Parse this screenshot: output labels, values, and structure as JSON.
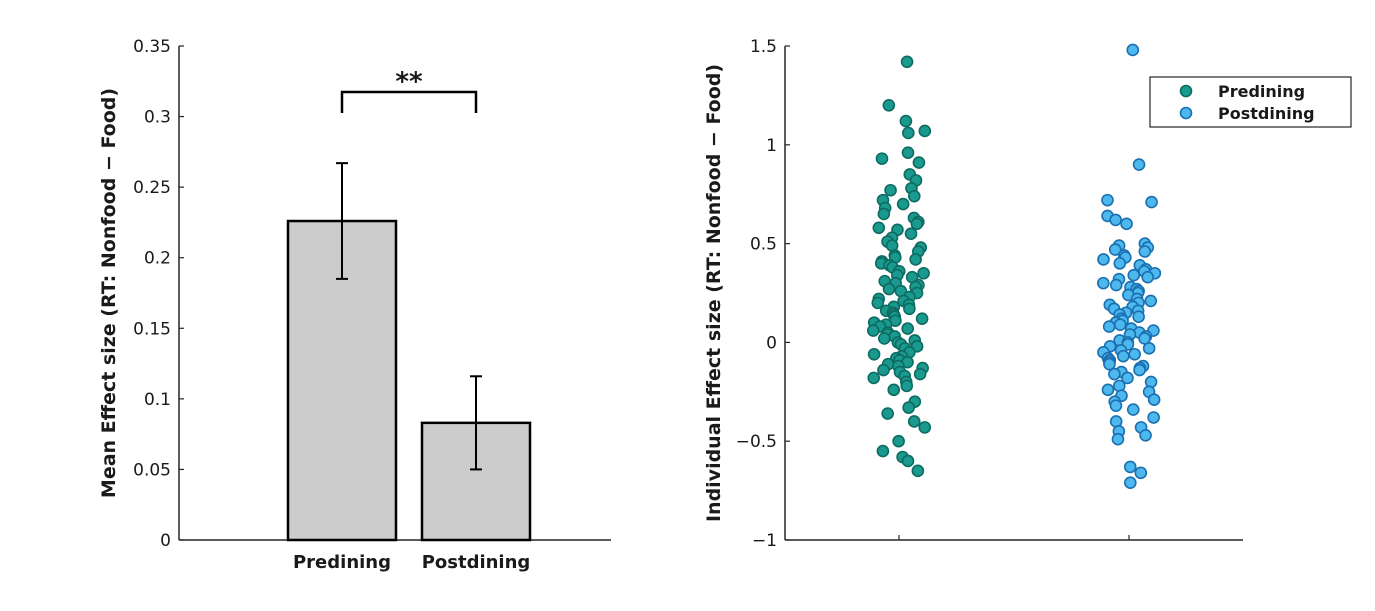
{
  "chart_data": [
    {
      "type": "bar",
      "title": "",
      "categories": [
        "Predining",
        "Postdining"
      ],
      "values": [
        0.226,
        0.083
      ],
      "errors": [
        0.041,
        0.033
      ],
      "bar_color": "#cccccc",
      "edge_color": "#000000",
      "xlabel": "",
      "ylabel": "Mean Effect size (RT: Nonfood − Food)",
      "ylim": [
        0,
        0.35
      ],
      "yticks": [
        0,
        0.05,
        0.1,
        0.15,
        0.2,
        0.25,
        0.3,
        0.35
      ],
      "ytick_labels": [
        "0",
        "0.05",
        "0.1",
        "0.15",
        "0.2",
        "0.25",
        "0.3",
        "0.35"
      ],
      "annotation": "**",
      "grid": false
    },
    {
      "type": "scatter",
      "title": "",
      "xlabel": "",
      "ylabel": "Individual Effect size (RT: Nonfood − Food)",
      "ylim": [
        -1,
        1.5
      ],
      "yticks": [
        -1,
        -0.5,
        0,
        0.5,
        1,
        1.5
      ],
      "ytick_labels": [
        "−1",
        "−0.5",
        "0",
        "0.5",
        "1",
        "1.5"
      ],
      "legend_position": "top-right",
      "grid": false,
      "series": [
        {
          "name": "Predining",
          "color": "#1a9a8e",
          "edge": "#0d6b62",
          "values": [
            1.42,
            1.2,
            1.12,
            1.07,
            1.06,
            0.96,
            0.93,
            0.91,
            0.85,
            0.82,
            0.78,
            0.77,
            0.74,
            0.72,
            0.7,
            0.68,
            0.65,
            0.63,
            0.61,
            0.6,
            0.58,
            0.57,
            0.55,
            0.53,
            0.51,
            0.49,
            0.48,
            0.46,
            0.44,
            0.43,
            0.42,
            0.41,
            0.4,
            0.39,
            0.38,
            0.36,
            0.35,
            0.34,
            0.33,
            0.31,
            0.3,
            0.29,
            0.28,
            0.27,
            0.26,
            0.25,
            0.23,
            0.22,
            0.21,
            0.2,
            0.19,
            0.18,
            0.17,
            0.16,
            0.15,
            0.14,
            0.13,
            0.12,
            0.11,
            0.1,
            0.09,
            0.08,
            0.07,
            0.06,
            0.05,
            0.04,
            0.03,
            0.02,
            0.01,
            0.0,
            -0.01,
            -0.02,
            -0.03,
            -0.05,
            -0.06,
            -0.07,
            -0.08,
            -0.09,
            -0.1,
            -0.11,
            -0.12,
            -0.13,
            -0.14,
            -0.15,
            -0.16,
            -0.17,
            -0.18,
            -0.2,
            -0.22,
            -0.24,
            -0.3,
            -0.33,
            -0.36,
            -0.4,
            -0.43,
            -0.5,
            -0.55,
            -0.58,
            -0.6,
            -0.65
          ]
        },
        {
          "name": "Postdining",
          "color": "#4db8ee",
          "edge": "#1a6fb0",
          "values": [
            1.48,
            0.9,
            0.72,
            0.71,
            0.64,
            0.62,
            0.6,
            0.5,
            0.49,
            0.48,
            0.47,
            0.46,
            0.44,
            0.43,
            0.42,
            0.4,
            0.39,
            0.37,
            0.36,
            0.35,
            0.34,
            0.33,
            0.32,
            0.3,
            0.29,
            0.28,
            0.27,
            0.26,
            0.25,
            0.24,
            0.22,
            0.21,
            0.2,
            0.19,
            0.18,
            0.17,
            0.16,
            0.15,
            0.14,
            0.13,
            0.12,
            0.11,
            0.1,
            0.09,
            0.08,
            0.07,
            0.06,
            0.05,
            0.04,
            0.03,
            0.02,
            0.01,
            0.0,
            -0.01,
            -0.02,
            -0.03,
            -0.04,
            -0.05,
            -0.06,
            -0.07,
            -0.08,
            -0.09,
            -0.1,
            -0.11,
            -0.12,
            -0.13,
            -0.14,
            -0.15,
            -0.16,
            -0.18,
            -0.2,
            -0.22,
            -0.24,
            -0.25,
            -0.27,
            -0.29,
            -0.3,
            -0.32,
            -0.34,
            -0.38,
            -0.4,
            -0.43,
            -0.45,
            -0.47,
            -0.49,
            -0.63,
            -0.66,
            -0.71
          ]
        }
      ]
    }
  ]
}
